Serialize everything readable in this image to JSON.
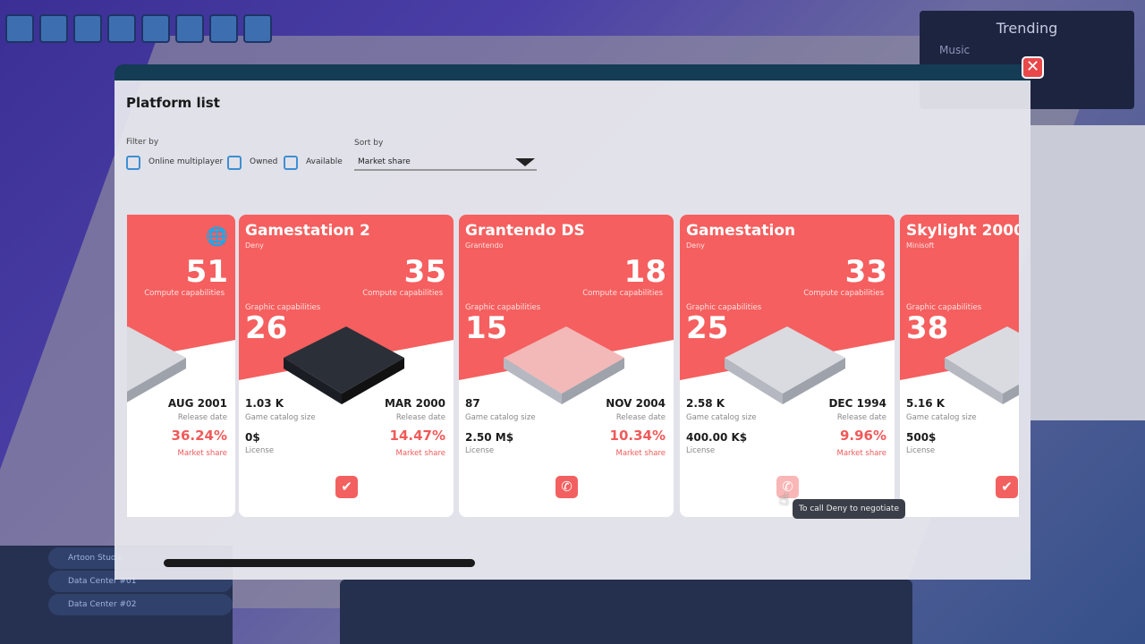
{
  "modal": {
    "title": "Platform list",
    "close_icon": "close-icon"
  },
  "filters": {
    "label": "Filter by",
    "options": [
      {
        "label": "Online multiplayer",
        "checked": false
      },
      {
        "label": "Owned",
        "checked": false
      },
      {
        "label": "Available",
        "checked": false
      }
    ]
  },
  "sort": {
    "label": "Sort by",
    "value": "Market share"
  },
  "background": {
    "trending_title": "Trending",
    "trending_item": "Music",
    "nav": [
      "Artoon Studio",
      "Data Center #01",
      "Data Center #02"
    ]
  },
  "labels": {
    "compute": "Compute capabilities",
    "graphic": "Graphic capabilities",
    "catalog": "Game catalog size",
    "release": "Release date",
    "license": "License",
    "market": "Market share"
  },
  "cards": [
    {
      "name": "",
      "maker": "",
      "compute": "51",
      "graphic": "",
      "catalog": "",
      "release": "AUG 2001",
      "license": "",
      "market_share": "36.24%",
      "action": "owned",
      "icon": "globe-icon",
      "color": "#f55f5f"
    },
    {
      "name": "Gamestation 2",
      "maker": "Deny",
      "compute": "35",
      "graphic": "26",
      "catalog": "1.03 K",
      "release": "MAR 2000",
      "license": "0$",
      "market_share": "14.47%",
      "action": "owned"
    },
    {
      "name": "Grantendo DS",
      "maker": "Grantendo",
      "compute": "18",
      "graphic": "15",
      "catalog": "87",
      "release": "NOV 2004",
      "license": "2.50 M$",
      "market_share": "10.34%",
      "action": "call"
    },
    {
      "name": "Gamestation",
      "maker": "Deny",
      "compute": "33",
      "graphic": "25",
      "catalog": "2.58 K",
      "release": "DEC 1994",
      "license": "400.00 K$",
      "market_share": "9.96%",
      "action": "call"
    },
    {
      "name": "Skylight 2000",
      "maker": "Minisoft",
      "compute": "",
      "graphic": "38",
      "catalog": "5.16 K",
      "release": "",
      "license": "500$",
      "market_share": "",
      "action": "owned"
    }
  ],
  "tooltip": "To call Deny to negotiate"
}
